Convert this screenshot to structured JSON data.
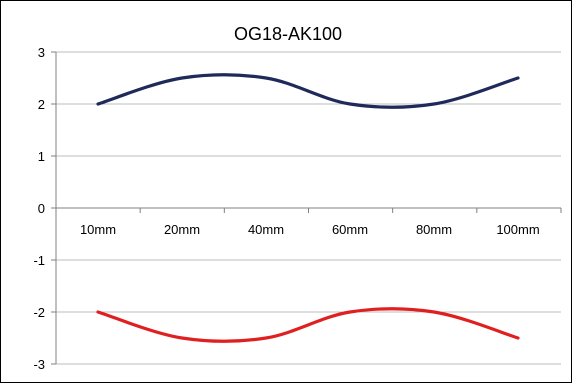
{
  "chart_data": {
    "type": "line",
    "title": "OG18-AK100",
    "xlabel": "",
    "ylabel": "",
    "categories": [
      "10mm",
      "20mm",
      "40mm",
      "60mm",
      "80mm",
      "100mm"
    ],
    "ylim": [
      -3,
      3
    ],
    "yticks": [
      -3,
      -2,
      -1,
      0,
      1,
      2,
      3
    ],
    "grid": true,
    "legend": "none",
    "smooth": true,
    "series": [
      {
        "color": "#1f2a5a",
        "values": [
          2.0,
          2.5,
          2.5,
          2.0,
          2.0,
          2.5
        ]
      },
      {
        "color": "#e02020",
        "values": [
          -2.0,
          -2.5,
          -2.5,
          -2.0,
          -2.0,
          -2.5
        ]
      }
    ]
  }
}
